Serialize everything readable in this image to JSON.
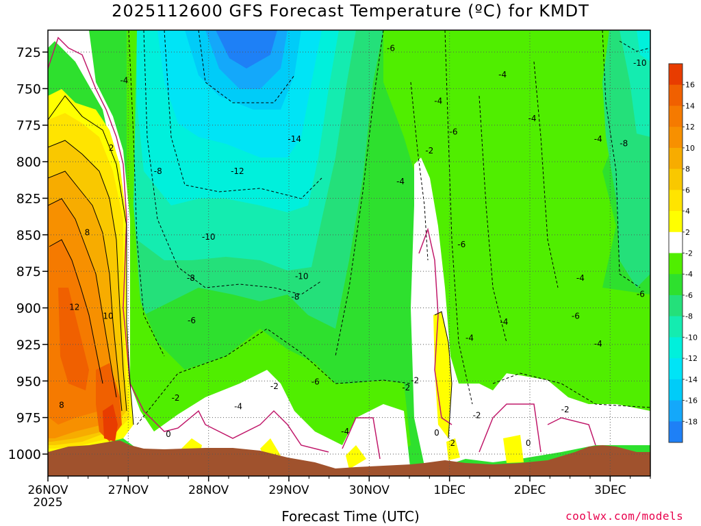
{
  "title": "2025112600 GFS Forecast Temperature (ºC) for KMDT",
  "credit": "coolwx.com/models",
  "chart_data": {
    "type": "heatmap",
    "title": "2025112600 GFS Forecast Temperature (ºC) for KMDT",
    "xlabel": "Forecast Time (UTC)",
    "ylabel": "",
    "x_ticks": [
      "26NOV",
      "27NOV",
      "28NOV",
      "29NOV",
      "30NOV",
      "1DEC",
      "2DEC",
      "3DEC"
    ],
    "x_year_label": "2025",
    "x_range_days": [
      0,
      7.5
    ],
    "y_ticks": [
      725,
      750,
      775,
      800,
      825,
      850,
      875,
      900,
      925,
      950,
      975,
      1000
    ],
    "y_range": [
      1015,
      710
    ],
    "colorbar": {
      "labels": [
        16,
        14,
        12,
        10,
        8,
        6,
        4,
        2,
        -2,
        -4,
        -6,
        -8,
        -10,
        -12,
        -14,
        -16,
        -18
      ],
      "colors": [
        "#e83c00",
        "#f06000",
        "#f57a00",
        "#f79000",
        "#f7ac00",
        "#f9c800",
        "#ffe400",
        "#ffff00",
        "#ffffff",
        "#50ee00",
        "#2ee02e",
        "#24e07a",
        "#14ecb0",
        "#00f0dc",
        "#00e4f6",
        "#00ccf8",
        "#14a8fa",
        "#1e80f6"
      ]
    },
    "ground_color": "#a0522d",
    "contour_labels": [
      {
        "v": "-4",
        "d": 0.95,
        "p": 745
      },
      {
        "v": "2",
        "d": 0.79,
        "p": 791
      },
      {
        "v": "8",
        "d": 0.49,
        "p": 849
      },
      {
        "v": "12",
        "d": 0.33,
        "p": 900
      },
      {
        "v": "10",
        "d": 0.75,
        "p": 906
      },
      {
        "v": "8",
        "d": 0.17,
        "p": 967
      },
      {
        "v": "-8",
        "d": 1.37,
        "p": 807
      },
      {
        "v": "-6",
        "d": 4.27,
        "p": 723
      },
      {
        "v": "-14",
        "d": 3.07,
        "p": 785
      },
      {
        "v": "-12",
        "d": 2.36,
        "p": 807
      },
      {
        "v": "-10",
        "d": 2.0,
        "p": 852
      },
      {
        "v": "-8",
        "d": 1.78,
        "p": 880
      },
      {
        "v": "-10",
        "d": 3.16,
        "p": 879
      },
      {
        "v": "-8",
        "d": 3.08,
        "p": 893
      },
      {
        "v": "-6",
        "d": 1.79,
        "p": 909
      },
      {
        "v": "-2",
        "d": 1.59,
        "p": 962
      },
      {
        "v": "0",
        "d": 1.5,
        "p": 987
      },
      {
        "v": "-2",
        "d": 2.82,
        "p": 954
      },
      {
        "v": "-4",
        "d": 2.37,
        "p": 968
      },
      {
        "v": "-6",
        "d": 3.33,
        "p": 951
      },
      {
        "v": "-4",
        "d": 3.7,
        "p": 985
      },
      {
        "v": "-2",
        "d": 4.75,
        "p": 793
      },
      {
        "v": "-4",
        "d": 4.39,
        "p": 814
      },
      {
        "v": "-4",
        "d": 4.86,
        "p": 759
      },
      {
        "v": "-6",
        "d": 5.05,
        "p": 780
      },
      {
        "v": "-6",
        "d": 5.15,
        "p": 857
      },
      {
        "v": "-2",
        "d": 4.46,
        "p": 955
      },
      {
        "v": "-2",
        "d": 4.57,
        "p": 950
      },
      {
        "v": "-4",
        "d": 5.25,
        "p": 921
      },
      {
        "v": "0",
        "d": 4.84,
        "p": 986
      },
      {
        "v": "2",
        "d": 5.04,
        "p": 993
      },
      {
        "v": "-2",
        "d": 5.34,
        "p": 974
      },
      {
        "v": "0",
        "d": 5.98,
        "p": 993
      },
      {
        "v": "-4",
        "d": 5.66,
        "p": 741
      },
      {
        "v": "-4",
        "d": 6.03,
        "p": 771
      },
      {
        "v": "-4",
        "d": 5.68,
        "p": 910
      },
      {
        "v": "-6",
        "d": 6.57,
        "p": 906
      },
      {
        "v": "-4",
        "d": 6.63,
        "p": 880
      },
      {
        "v": "-4",
        "d": 6.85,
        "p": 785
      },
      {
        "v": "-4",
        "d": 6.85,
        "p": 925
      },
      {
        "v": "-2",
        "d": 6.44,
        "p": 970
      },
      {
        "v": "-8",
        "d": 7.17,
        "p": 788
      },
      {
        "v": "-10",
        "d": 7.37,
        "p": 733
      },
      {
        "v": "-6",
        "d": 7.38,
        "p": 891
      }
    ]
  }
}
